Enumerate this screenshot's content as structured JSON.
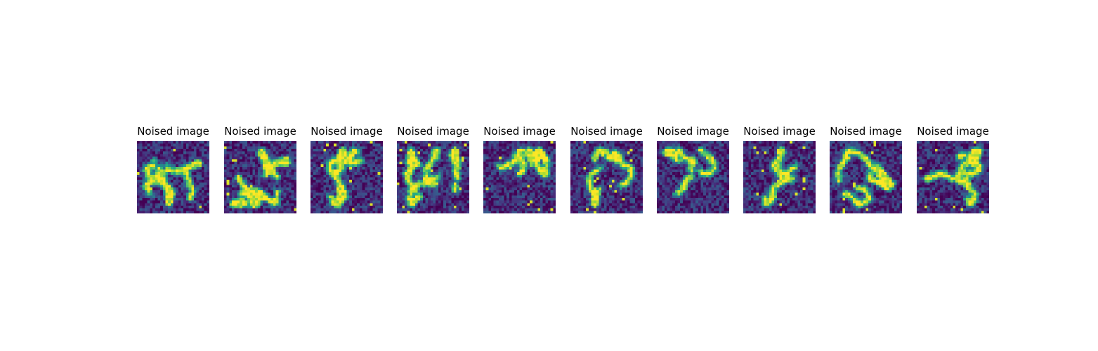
{
  "figure": {
    "panels": [
      {
        "title": "Noised image"
      },
      {
        "title": "Noised image"
      },
      {
        "title": "Noised image"
      },
      {
        "title": "Noised image"
      },
      {
        "title": "Noised image"
      },
      {
        "title": "Noised image"
      },
      {
        "title": "Noised image"
      },
      {
        "title": "Noised image"
      },
      {
        "title": "Noised image"
      },
      {
        "title": "Noised image"
      }
    ],
    "colormap": "viridis",
    "colors": {
      "background": "#ffffff",
      "low": "#440154",
      "high": "#fde725"
    }
  }
}
